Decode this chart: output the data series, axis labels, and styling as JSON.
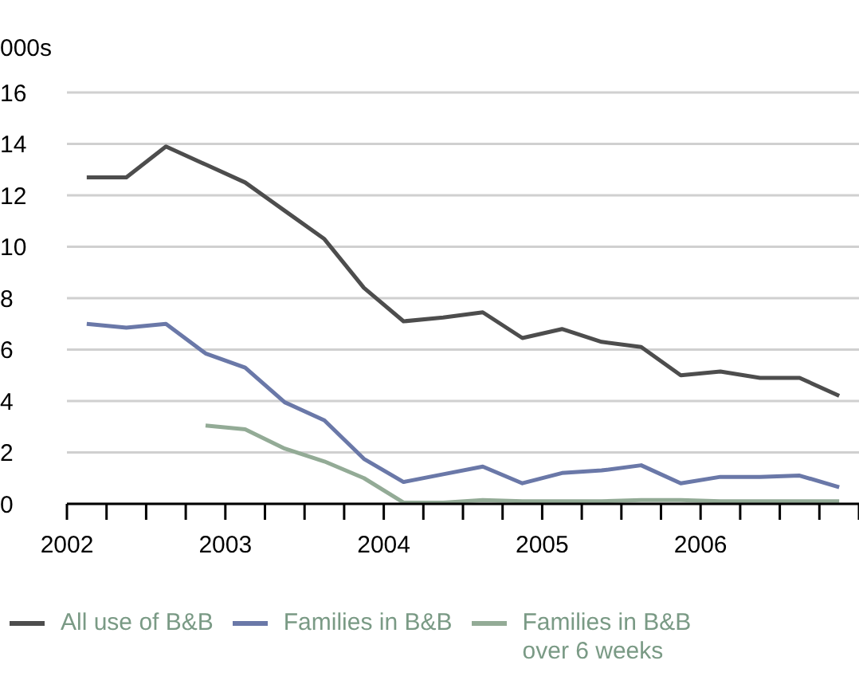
{
  "chart_data": {
    "type": "line",
    "ylabel": "000s",
    "x": [
      2002.125,
      2002.375,
      2002.625,
      2002.875,
      2003.125,
      2003.375,
      2003.625,
      2003.875,
      2004.125,
      2004.375,
      2004.625,
      2004.875,
      2005.125,
      2005.375,
      2005.625,
      2005.875,
      2006.125,
      2006.375,
      2006.625,
      2006.875
    ],
    "series": [
      {
        "name": "All use of B&B",
        "color": "#4d4d4d",
        "values": [
          12.7,
          12.7,
          13.9,
          13.2,
          12.5,
          11.4,
          10.3,
          8.4,
          7.1,
          7.25,
          7.45,
          6.45,
          6.8,
          6.3,
          6.1,
          5.0,
          5.15,
          4.9,
          4.9,
          4.2
        ]
      },
      {
        "name": "Families in B&B",
        "color": "#6a78a8",
        "values": [
          7.0,
          6.85,
          7.0,
          5.85,
          5.3,
          3.95,
          3.25,
          1.75,
          0.85,
          1.15,
          1.45,
          0.8,
          1.2,
          1.3,
          1.5,
          0.8,
          1.05,
          1.05,
          1.1,
          0.65
        ]
      },
      {
        "name": "Families in B&B over 6 weeks",
        "color": "#93ab96",
        "values": [
          null,
          null,
          null,
          3.05,
          2.9,
          2.15,
          1.65,
          1.0,
          0.05,
          0.05,
          0.15,
          0.1,
          0.1,
          0.1,
          0.15,
          0.15,
          0.1,
          0.1,
          0.1,
          0.1
        ]
      }
    ],
    "xlim": [
      2002,
      2007
    ],
    "xticks": [
      2002,
      {
        "value": 2002.25,
        "label": null
      },
      {
        "value": 2002.5,
        "label": null
      },
      {
        "value": 2002.75,
        "label": null
      },
      2003,
      {
        "value": 2003.25,
        "label": null
      },
      {
        "value": 2003.5,
        "label": null
      },
      {
        "value": 2003.75,
        "label": null
      },
      2004,
      {
        "value": 2004.25,
        "label": null
      },
      {
        "value": 2004.5,
        "label": null
      },
      {
        "value": 2004.75,
        "label": null
      },
      2005,
      {
        "value": 2005.25,
        "label": null
      },
      {
        "value": 2005.5,
        "label": null
      },
      {
        "value": 2005.75,
        "label": null
      },
      2006,
      {
        "value": 2006.25,
        "label": null
      },
      {
        "value": 2006.5,
        "label": null
      },
      {
        "value": 2006.75,
        "label": null
      },
      {
        "value": 2007,
        "label": null
      }
    ],
    "ylim": [
      0,
      16
    ],
    "yticks": [
      0,
      2,
      4,
      6,
      8,
      10,
      12,
      14,
      16
    ],
    "grid": "y",
    "legend": "bottom"
  }
}
